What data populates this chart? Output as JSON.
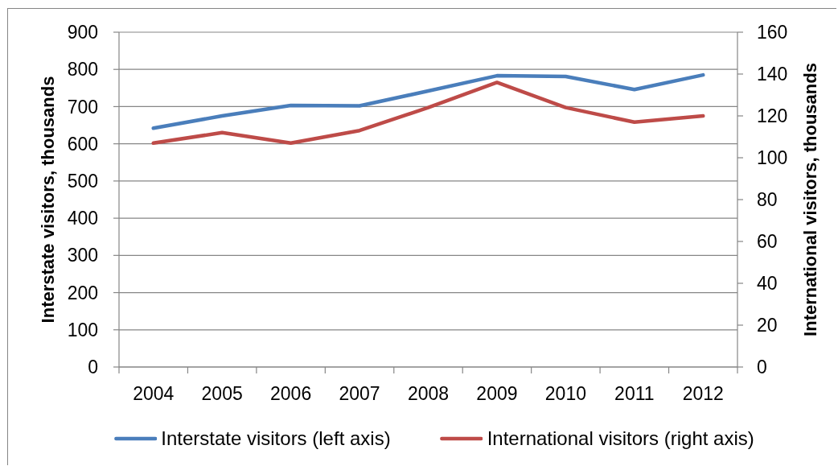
{
  "chart_data": {
    "type": "line",
    "categories": [
      "2004",
      "2005",
      "2006",
      "2007",
      "2008",
      "2009",
      "2010",
      "2011",
      "2012"
    ],
    "ylabel": "Interstate visitors, thousands",
    "y2label": "International visitors, thousands",
    "ylim": [
      0,
      900
    ],
    "yticks": [
      0,
      100,
      200,
      300,
      400,
      500,
      600,
      700,
      800,
      900
    ],
    "y2lim": [
      0,
      160
    ],
    "y2ticks": [
      0,
      20,
      40,
      60,
      80,
      100,
      120,
      140,
      160
    ],
    "series": [
      {
        "name": "Interstate visitors (left axis)",
        "color": "#4a7ebb",
        "values": [
          642,
          675,
          703,
          702,
          742,
          783,
          781,
          746,
          785
        ]
      },
      {
        "name": "International visitors (right axis)",
        "color": "#be4b48",
        "axis": "y2",
        "values": [
          107,
          112,
          107,
          113,
          124,
          136,
          124,
          117,
          120
        ]
      }
    ],
    "grid": "y",
    "legend": "bottom",
    "marker": "none",
    "line_style": "solid"
  }
}
